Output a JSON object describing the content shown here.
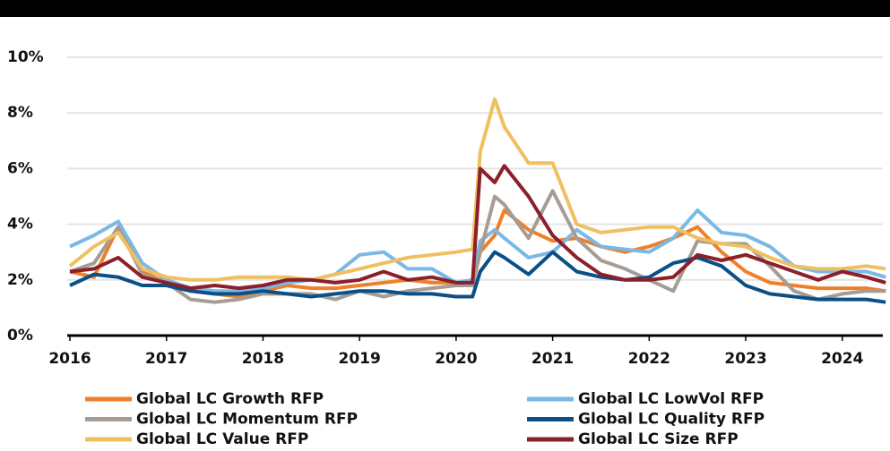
{
  "chart_data": {
    "type": "line",
    "x": [
      2016,
      2016.25,
      2016.5,
      2016.75,
      2017,
      2017.25,
      2017.5,
      2017.75,
      2018,
      2018.25,
      2018.5,
      2018.75,
      2019,
      2019.25,
      2019.5,
      2019.75,
      2020,
      2020.17,
      2020.25,
      2020.4,
      2020.5,
      2020.75,
      2021,
      2021.25,
      2021.5,
      2021.75,
      2022,
      2022.25,
      2022.5,
      2022.75,
      2023,
      2023.25,
      2023.5,
      2023.75,
      2024,
      2024.25,
      2024.45
    ],
    "series": [
      {
        "name": "Global LC Growth RFP",
        "color": "#f07f2a",
        "values": [
          2.3,
          2.1,
          3.9,
          2.3,
          1.9,
          1.6,
          1.5,
          1.4,
          1.6,
          1.8,
          1.7,
          1.7,
          1.8,
          1.9,
          2.0,
          1.9,
          1.9,
          1.8,
          3.0,
          3.6,
          4.5,
          3.8,
          3.4,
          3.5,
          3.2,
          3.0,
          3.2,
          3.5,
          3.9,
          3.0,
          2.3,
          1.9,
          1.8,
          1.7,
          1.7,
          1.7,
          1.6
        ]
      },
      {
        "name": "Global LC LowVol RFP",
        "color": "#7ab8e6",
        "values": [
          3.2,
          3.6,
          4.1,
          2.6,
          2.0,
          1.7,
          1.6,
          1.6,
          1.7,
          1.9,
          2.0,
          2.2,
          2.9,
          3.0,
          2.4,
          2.4,
          1.9,
          2.0,
          3.4,
          3.8,
          3.5,
          2.8,
          3.0,
          3.8,
          3.2,
          3.1,
          3.0,
          3.5,
          4.5,
          3.7,
          3.6,
          3.2,
          2.5,
          2.3,
          2.3,
          2.3,
          2.1
        ]
      },
      {
        "name": "Global LC Momentum RFP",
        "color": "#a59d95",
        "values": [
          2.3,
          2.6,
          3.9,
          2.2,
          1.9,
          1.3,
          1.2,
          1.3,
          1.5,
          1.5,
          1.5,
          1.3,
          1.6,
          1.4,
          1.6,
          1.7,
          1.8,
          1.8,
          3.0,
          5.0,
          4.7,
          3.5,
          5.2,
          3.5,
          2.7,
          2.4,
          2.0,
          1.6,
          3.4,
          3.3,
          3.3,
          2.5,
          1.6,
          1.3,
          1.5,
          1.6,
          1.6
        ]
      },
      {
        "name": "Global LC Quality RFP",
        "color": "#0b4f87",
        "values": [
          1.8,
          2.2,
          2.1,
          1.8,
          1.8,
          1.6,
          1.5,
          1.5,
          1.6,
          1.5,
          1.4,
          1.5,
          1.6,
          1.6,
          1.5,
          1.5,
          1.4,
          1.4,
          2.3,
          3.0,
          2.8,
          2.2,
          3.0,
          2.3,
          2.1,
          2.0,
          2.1,
          2.6,
          2.8,
          2.5,
          1.8,
          1.5,
          1.4,
          1.3,
          1.3,
          1.3,
          1.2
        ]
      },
      {
        "name": "Global LC Value RFP",
        "color": "#f0c060",
        "values": [
          2.5,
          3.2,
          3.7,
          2.4,
          2.1,
          2.0,
          2.0,
          2.1,
          2.1,
          2.1,
          2.0,
          2.2,
          2.4,
          2.6,
          2.8,
          2.9,
          3.0,
          3.1,
          6.6,
          8.5,
          7.5,
          6.2,
          6.2,
          4.0,
          3.7,
          3.8,
          3.9,
          3.9,
          3.5,
          3.3,
          3.2,
          2.8,
          2.5,
          2.4,
          2.4,
          2.5,
          2.4
        ]
      },
      {
        "name": "Global LC Size RFP",
        "color": "#8b1f2a",
        "values": [
          2.3,
          2.4,
          2.8,
          2.1,
          1.9,
          1.7,
          1.8,
          1.7,
          1.8,
          2.0,
          2.0,
          1.9,
          2.0,
          2.3,
          2.0,
          2.1,
          1.9,
          1.9,
          6.0,
          5.5,
          6.1,
          5.0,
          3.6,
          2.8,
          2.2,
          2.0,
          2.0,
          2.1,
          2.9,
          2.7,
          2.9,
          2.6,
          2.3,
          2.0,
          2.3,
          2.1,
          1.9
        ]
      }
    ],
    "xlim": [
      2016,
      2024.42
    ],
    "xticks": [
      2016,
      2017,
      2018,
      2019,
      2020,
      2021,
      2022,
      2023,
      2024
    ],
    "ylim": [
      0,
      10
    ],
    "yticks": [
      {
        "value": 0,
        "label": "0%"
      },
      {
        "value": 2,
        "label": "2%"
      },
      {
        "value": 4,
        "label": "4%"
      },
      {
        "value": 6,
        "label": "6%"
      },
      {
        "value": 8,
        "label": "8%"
      },
      {
        "value": 10,
        "label": "10%"
      }
    ],
    "grid": true
  }
}
